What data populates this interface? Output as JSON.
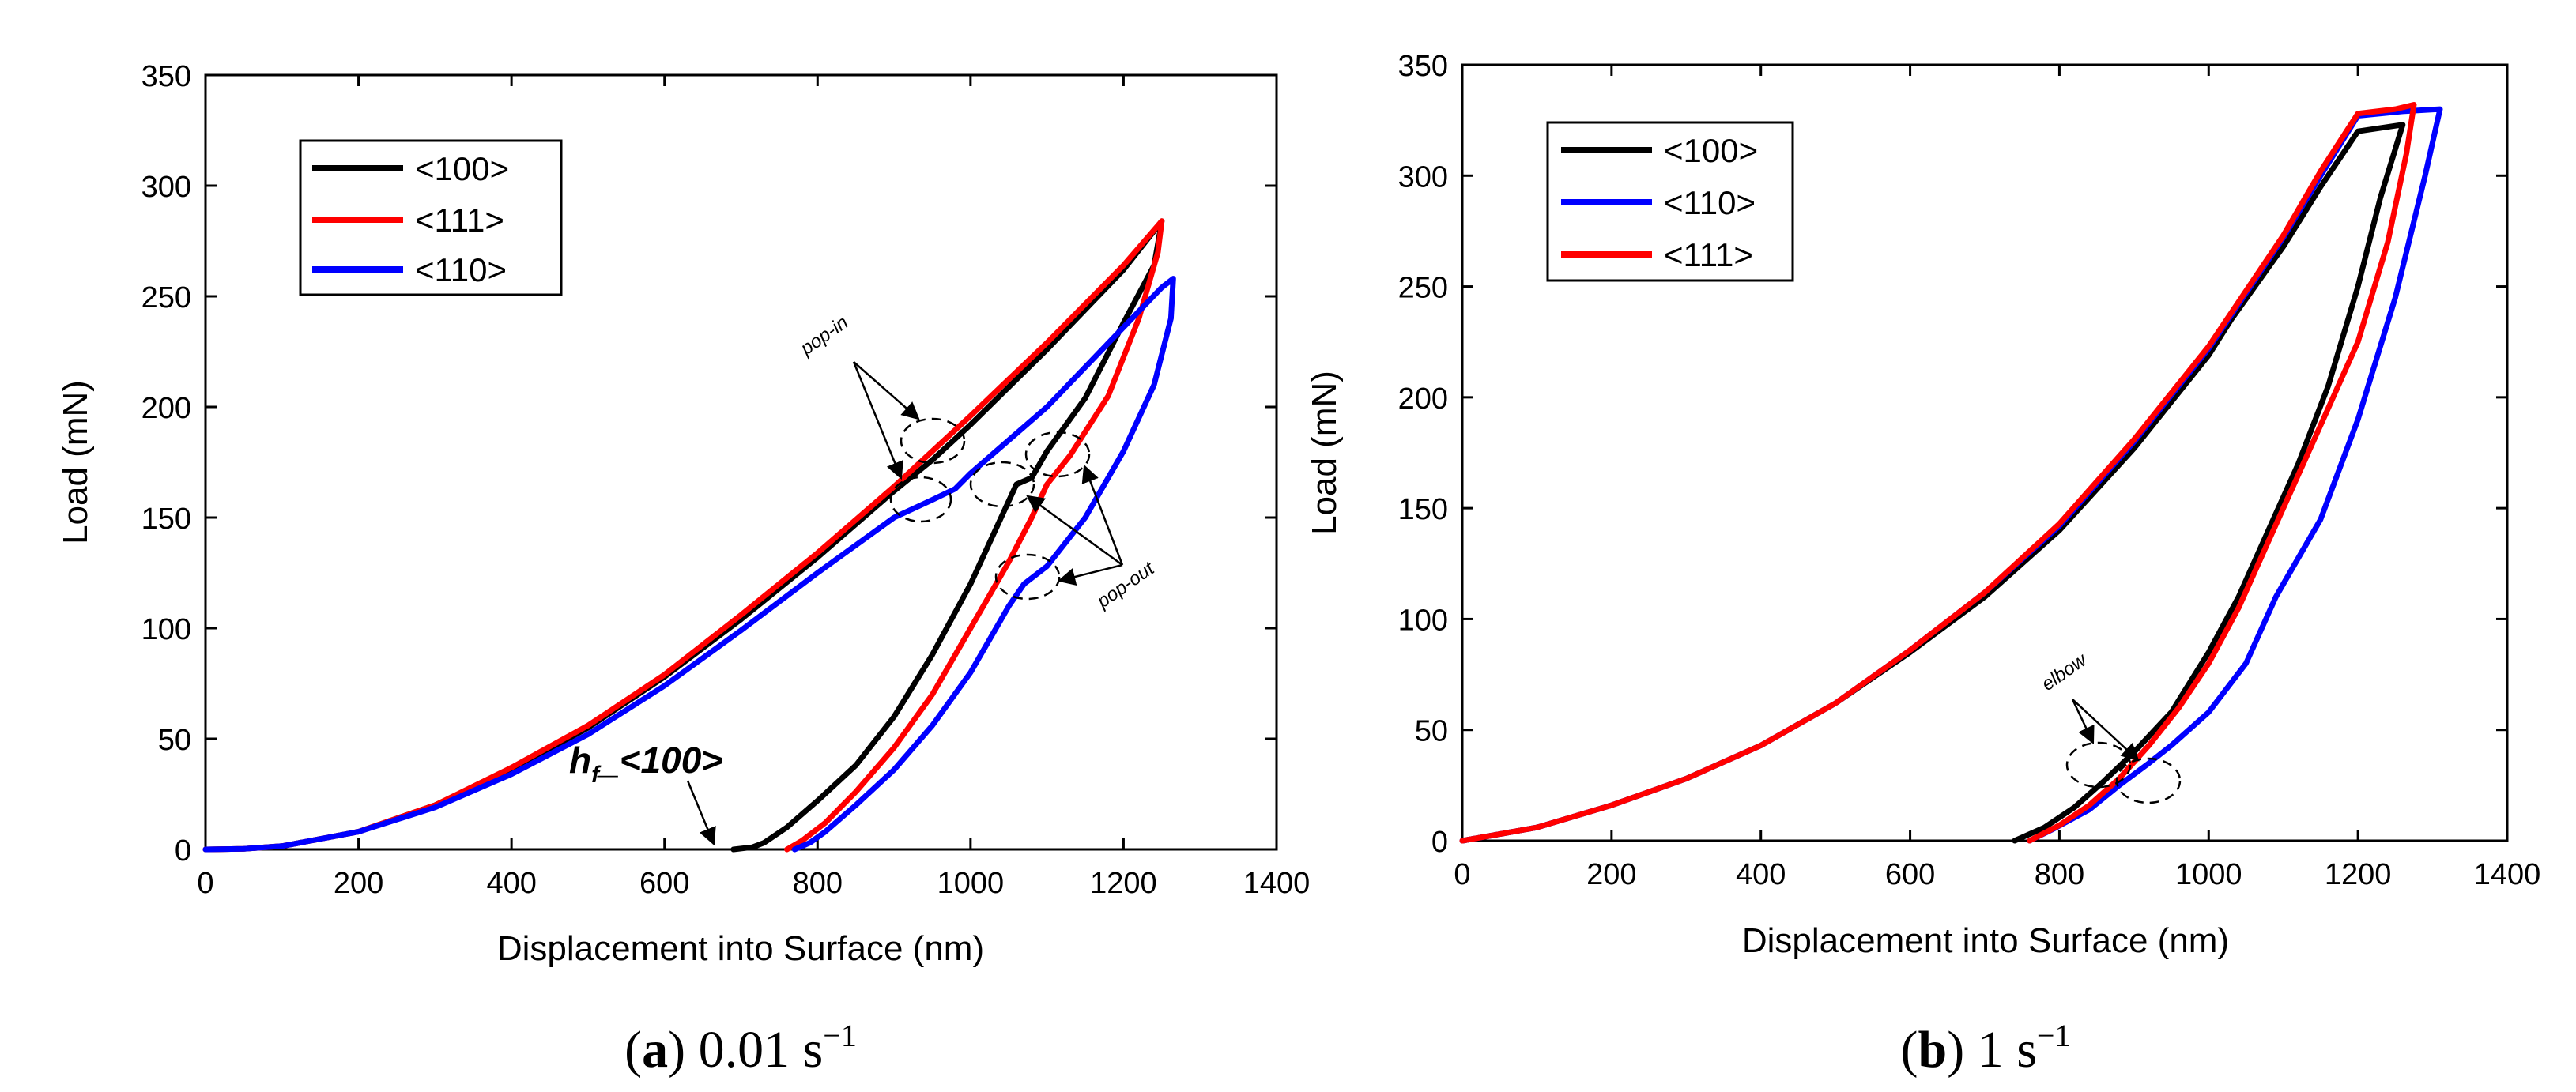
{
  "chart_data": [
    {
      "id": "a",
      "type": "line",
      "xlabel": "Displacement into Surface (nm)",
      "ylabel": "Load (mN)",
      "xlim": [
        0,
        1400
      ],
      "ylim": [
        0,
        350
      ],
      "xticks": [
        0,
        200,
        400,
        600,
        800,
        1000,
        1200,
        1400
      ],
      "yticks": [
        0,
        50,
        100,
        150,
        200,
        250,
        300,
        350
      ],
      "grid": false,
      "legend_position": "top-left",
      "caption": {
        "label": "a",
        "text": "0.01 s",
        "sup": "−1"
      },
      "series": [
        {
          "name": "<100>",
          "color": "#000000",
          "points": [
            [
              0,
              0
            ],
            [
              50,
              0.3
            ],
            [
              100,
              1.5
            ],
            [
              200,
              8
            ],
            [
              300,
              20
            ],
            [
              400,
              36
            ],
            [
              500,
              55
            ],
            [
              600,
              78
            ],
            [
              700,
              104
            ],
            [
              800,
              132
            ],
            [
              900,
              162
            ],
            [
              950,
              176
            ],
            [
              1000,
              192
            ],
            [
              1100,
              226
            ],
            [
              1200,
              262
            ],
            [
              1250,
              284
            ],
            [
              1240,
              264
            ],
            [
              1200,
              238
            ],
            [
              1150,
              204
            ],
            [
              1100,
              180
            ],
            [
              1080,
              168
            ],
            [
              1060,
              165
            ],
            [
              1000,
              120
            ],
            [
              950,
              88
            ],
            [
              900,
              60
            ],
            [
              850,
              38
            ],
            [
              800,
              22
            ],
            [
              760,
              10
            ],
            [
              730,
              3
            ],
            [
              715,
              1
            ],
            [
              690,
              0
            ]
          ]
        },
        {
          "name": "<111>",
          "color": "#ff0000",
          "points": [
            [
              0,
              0
            ],
            [
              50,
              0.3
            ],
            [
              100,
              1.5
            ],
            [
              200,
              8
            ],
            [
              300,
              20
            ],
            [
              400,
              37
            ],
            [
              500,
              56
            ],
            [
              600,
              79
            ],
            [
              700,
              106
            ],
            [
              800,
              134
            ],
            [
              900,
              164
            ],
            [
              950,
              180
            ],
            [
              1000,
              196
            ],
            [
              1100,
              229
            ],
            [
              1200,
              264
            ],
            [
              1250,
              284
            ],
            [
              1245,
              270
            ],
            [
              1220,
              240
            ],
            [
              1180,
              205
            ],
            [
              1130,
              178
            ],
            [
              1100,
              165
            ],
            [
              1080,
              150
            ],
            [
              1050,
              130
            ],
            [
              1000,
              100
            ],
            [
              950,
              70
            ],
            [
              900,
              46
            ],
            [
              850,
              26
            ],
            [
              810,
              12
            ],
            [
              780,
              4
            ],
            [
              760,
              0
            ]
          ]
        },
        {
          "name": "<110>",
          "color": "#0000ff",
          "points": [
            [
              0,
              0
            ],
            [
              50,
              0.3
            ],
            [
              100,
              1.5
            ],
            [
              200,
              8
            ],
            [
              300,
              19
            ],
            [
              400,
              34
            ],
            [
              500,
              52
            ],
            [
              600,
              74
            ],
            [
              700,
              99
            ],
            [
              800,
              125
            ],
            [
              900,
              150
            ],
            [
              950,
              158
            ],
            [
              980,
              163
            ],
            [
              1000,
              170
            ],
            [
              1100,
              200
            ],
            [
              1200,
              236
            ],
            [
              1250,
              254
            ],
            [
              1265,
              258
            ],
            [
              1262,
              240
            ],
            [
              1240,
              210
            ],
            [
              1200,
              180
            ],
            [
              1150,
              150
            ],
            [
              1100,
              128
            ],
            [
              1070,
              120
            ],
            [
              1050,
              110
            ],
            [
              1000,
              80
            ],
            [
              950,
              56
            ],
            [
              900,
              36
            ],
            [
              850,
              20
            ],
            [
              810,
              8
            ],
            [
              790,
              3
            ],
            [
              770,
              0
            ]
          ]
        }
      ],
      "annotations": [
        {
          "text": "pop-in"
        },
        {
          "text": "pop-out"
        },
        {
          "text_base": "h",
          "text_sub": "f",
          "text_rest": "_<100>"
        }
      ]
    },
    {
      "id": "b",
      "type": "line",
      "xlabel": "Displacement into Surface (nm)",
      "ylabel": "Load (mN)",
      "xlim": [
        0,
        1400
      ],
      "ylim": [
        0,
        350
      ],
      "xticks": [
        0,
        200,
        400,
        600,
        800,
        1000,
        1200,
        1400
      ],
      "yticks": [
        0,
        50,
        100,
        150,
        200,
        250,
        300,
        350
      ],
      "grid": false,
      "legend_position": "top-left",
      "caption": {
        "label": "b",
        "text": "1 s",
        "sup": "−1"
      },
      "series": [
        {
          "name": "<100>",
          "color": "#000000",
          "points": [
            [
              0,
              0
            ],
            [
              100,
              6
            ],
            [
              200,
              16
            ],
            [
              300,
              28
            ],
            [
              400,
              43
            ],
            [
              500,
              62
            ],
            [
              600,
              85
            ],
            [
              700,
              110
            ],
            [
              800,
              140
            ],
            [
              900,
              177
            ],
            [
              1000,
              219
            ],
            [
              1030,
              235
            ],
            [
              1100,
              268
            ],
            [
              1150,
              295
            ],
            [
              1200,
              320
            ],
            [
              1260,
              323
            ],
            [
              1230,
              290
            ],
            [
              1200,
              250
            ],
            [
              1160,
              205
            ],
            [
              1120,
              170
            ],
            [
              1080,
              140
            ],
            [
              1040,
              110
            ],
            [
              1000,
              85
            ],
            [
              950,
              58
            ],
            [
              900,
              40
            ],
            [
              860,
              27
            ],
            [
              820,
              15
            ],
            [
              780,
              6
            ],
            [
              740,
              0
            ]
          ]
        },
        {
          "name": "<110>",
          "color": "#0000ff",
          "points": [
            [
              0,
              0
            ],
            [
              100,
              6
            ],
            [
              200,
              16
            ],
            [
              300,
              28
            ],
            [
              400,
              43
            ],
            [
              500,
              62
            ],
            [
              600,
              86
            ],
            [
              700,
              112
            ],
            [
              800,
              142
            ],
            [
              900,
              180
            ],
            [
              1000,
              222
            ],
            [
              1040,
              242
            ],
            [
              1100,
              272
            ],
            [
              1150,
              300
            ],
            [
              1200,
              327
            ],
            [
              1260,
              329
            ],
            [
              1310,
              330
            ],
            [
              1290,
              300
            ],
            [
              1250,
              245
            ],
            [
              1200,
              190
            ],
            [
              1150,
              145
            ],
            [
              1090,
              110
            ],
            [
              1050,
              80
            ],
            [
              1000,
              58
            ],
            [
              950,
              43
            ],
            [
              920,
              35
            ],
            [
              880,
              25
            ],
            [
              840,
              14
            ],
            [
              790,
              5
            ],
            [
              760,
              0
            ]
          ]
        },
        {
          "name": "<111>",
          "color": "#ff0000",
          "points": [
            [
              0,
              0
            ],
            [
              100,
              6
            ],
            [
              200,
              16
            ],
            [
              300,
              28
            ],
            [
              400,
              43
            ],
            [
              500,
              62
            ],
            [
              600,
              86
            ],
            [
              700,
              112
            ],
            [
              800,
              143
            ],
            [
              900,
              181
            ],
            [
              1000,
              223
            ],
            [
              1100,
              273
            ],
            [
              1150,
              302
            ],
            [
              1200,
              328
            ],
            [
              1250,
              330
            ],
            [
              1275,
              332
            ],
            [
              1265,
              310
            ],
            [
              1240,
              270
            ],
            [
              1200,
              225
            ],
            [
              1160,
              195
            ],
            [
              1120,
              165
            ],
            [
              1080,
              135
            ],
            [
              1040,
              105
            ],
            [
              1000,
              80
            ],
            [
              960,
              60
            ],
            [
              920,
              43
            ],
            [
              880,
              28
            ],
            [
              840,
              16
            ],
            [
              800,
              7
            ],
            [
              760,
              0
            ]
          ]
        }
      ],
      "annotations": [
        {
          "text": "elbow"
        }
      ]
    }
  ]
}
